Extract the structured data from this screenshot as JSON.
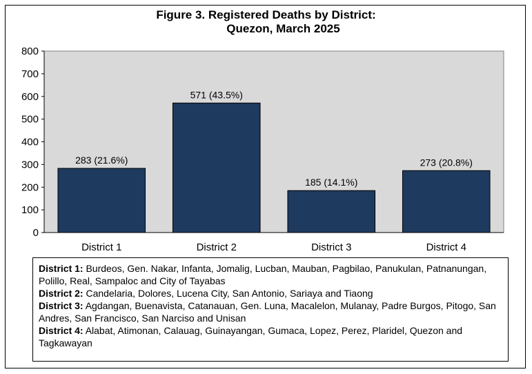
{
  "chart_data": {
    "type": "bar",
    "title_line1": "Figure 3. Registered Deaths by District:",
    "title_line2": "Quezon, March 2025",
    "categories": [
      "District 1",
      "District 2",
      "District 3",
      "District 4"
    ],
    "values": [
      283,
      571,
      185,
      273
    ],
    "data_labels": [
      "283 (21.6%)",
      "571 (43.5%)",
      "185 (14.1%)",
      "273 (20.8%)"
    ],
    "ylim": [
      0,
      800
    ],
    "yticks": [
      0,
      100,
      200,
      300,
      400,
      500,
      600,
      700,
      800
    ],
    "grid": false,
    "bar_color": "#1f3a5f",
    "plot_background": "#d9d9d9"
  },
  "notes": [
    {
      "label": "District 1:",
      "text": " Burdeos, Gen. Nakar, Infanta, Jomalig, Lucban, Mauban, Pagbilao, Panukulan, Patnanungan, Polillo, Real, Sampaloc and City of Tayabas"
    },
    {
      "label": "District 2:",
      "text": " Candelaria, Dolores, Lucena City, San Antonio, Sariaya and Tiaong"
    },
    {
      "label": "District 3:",
      "text": " Agdangan, Buenavista, Catanauan, Gen. Luna, Macalelon, Mulanay, Padre Burgos, Pitogo, San Andres, San Francisco, San Narciso and Unisan"
    },
    {
      "label": "District 4:",
      "text": " Alabat, Atimonan, Calauag, Guinayangan, Gumaca, Lopez, Perez, Plaridel, Quezon and Tagkawayan"
    }
  ]
}
